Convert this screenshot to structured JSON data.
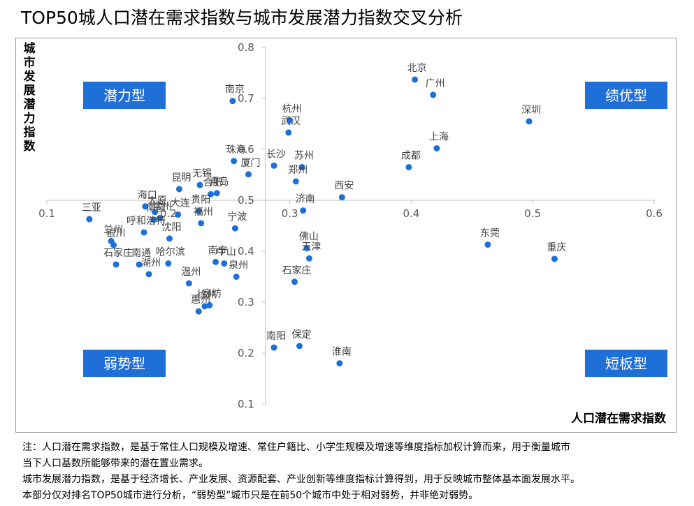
{
  "title": "TOP50城人口潜在需求指数与城市发展潜力指数交叉分析",
  "notes": [
    "注：人口潜在需求指数，是基于常住人口规模及增速、常住户籍比、小学生规模及增速等维度指标加权计算而来，用于衡量城市",
    "当下人口基数所能够带来的潜在置业需求。",
    "城市发展潜力指数，是基于经济增长、产业发展、资源配套、产业创新等维度指标计算得到，用于反映城市整体基本面发展水平。",
    "本部分仅对排名TOP50城市进行分析，“弱势型”城市只是在前50个城市中处于相对弱势，并非绝对弱势。"
  ],
  "colors": {
    "point": "#1f6fd8",
    "quadrant": "#1f6fd8",
    "quadrant_text": "#ffffff",
    "axis": "#bfbfbf",
    "border": "#9a9a9a"
  },
  "chart_data": {
    "type": "scatter",
    "title": "TOP50城人口潜在需求指数与城市发展潜力指数交叉分析",
    "xlabel": "人口潜在需求指数",
    "ylabel": "城市发展潜力指数",
    "xlim": [
      0.1,
      0.6
    ],
    "ylim": [
      0.1,
      0.8
    ],
    "axis_cross": {
      "x": 0.28,
      "y": 0.5
    },
    "xticks": [
      0.1,
      0.2,
      0.3,
      0.4,
      0.5,
      0.6
    ],
    "xtick_labels": [
      "0.1",
      "0.2",
      "0.3",
      "0.4",
      "0.5",
      "0.6"
    ],
    "yticks": [
      0.1,
      0.2,
      0.3,
      0.4,
      0.5,
      0.6,
      0.7,
      0.8
    ],
    "ytick_labels": [
      "0.1",
      "0.2",
      "0.3",
      "0.4",
      "0.5",
      "0.6",
      "0.7",
      "0.8"
    ],
    "grid": false,
    "quadrants": [
      {
        "label": "潜力型",
        "position": "top-left"
      },
      {
        "label": "绩优型",
        "position": "top-right"
      },
      {
        "label": "弱势型",
        "position": "bottom-left"
      },
      {
        "label": "短板型",
        "position": "bottom-right"
      }
    ],
    "points": [
      {
        "name": "北京",
        "x": 0.403,
        "y": 0.737
      },
      {
        "name": "广州",
        "x": 0.418,
        "y": 0.707
      },
      {
        "name": "深圳",
        "x": 0.497,
        "y": 0.655
      },
      {
        "name": "上海",
        "x": 0.421,
        "y": 0.602
      },
      {
        "name": "成都",
        "x": 0.398,
        "y": 0.565
      },
      {
        "name": "南京",
        "x": 0.253,
        "y": 0.695
      },
      {
        "name": "杭州",
        "x": 0.3,
        "y": 0.657
      },
      {
        "name": "武汉",
        "x": 0.299,
        "y": 0.633
      },
      {
        "name": "珠海",
        "x": 0.254,
        "y": 0.577
      },
      {
        "name": "厦门",
        "x": 0.266,
        "y": 0.551
      },
      {
        "name": "长沙",
        "x": 0.287,
        "y": 0.568
      },
      {
        "name": "苏州",
        "x": 0.31,
        "y": 0.565
      },
      {
        "name": "郑州",
        "x": 0.305,
        "y": 0.537
      },
      {
        "name": "西安",
        "x": 0.343,
        "y": 0.506
      },
      {
        "name": "济南",
        "x": 0.311,
        "y": 0.48
      },
      {
        "name": "昆明",
        "x": 0.209,
        "y": 0.522
      },
      {
        "name": "无锡",
        "x": 0.226,
        "y": 0.53
      },
      {
        "name": "合肥",
        "x": 0.235,
        "y": 0.512
      },
      {
        "name": "青岛",
        "x": 0.24,
        "y": 0.514
      },
      {
        "name": "贵阳",
        "x": 0.225,
        "y": 0.479
      },
      {
        "name": "海口",
        "x": 0.181,
        "y": 0.488
      },
      {
        "name": "太原",
        "x": 0.189,
        "y": 0.477
      },
      {
        "name": "常州",
        "x": 0.193,
        "y": 0.465
      },
      {
        "name": "大连",
        "x": 0.208,
        "y": 0.472
      },
      {
        "name": "福州",
        "x": 0.227,
        "y": 0.455
      },
      {
        "name": "宁波",
        "x": 0.255,
        "y": 0.445
      },
      {
        "name": "三亚",
        "x": 0.135,
        "y": 0.463
      },
      {
        "name": "南昌",
        "x": 0.188,
        "y": 0.462
      },
      {
        "name": "沈阳",
        "x": 0.201,
        "y": 0.425
      },
      {
        "name": "呼和浩特",
        "x": 0.18,
        "y": 0.437
      },
      {
        "name": "兰州",
        "x": 0.153,
        "y": 0.42
      },
      {
        "name": "银川",
        "x": 0.155,
        "y": 0.412
      },
      {
        "name": "南通",
        "x": 0.176,
        "y": 0.374
      },
      {
        "name": "湖州",
        "x": 0.184,
        "y": 0.355
      },
      {
        "name": "哈尔滨",
        "x": 0.2,
        "y": 0.376
      },
      {
        "name": "石家庄",
        "x": 0.157,
        "y": 0.374
      },
      {
        "name": "南宁",
        "x": 0.239,
        "y": 0.379
      },
      {
        "name": "中山",
        "x": 0.246,
        "y": 0.376
      },
      {
        "name": "泉州",
        "x": 0.256,
        "y": 0.35
      },
      {
        "name": "温州",
        "x": 0.217,
        "y": 0.337
      },
      {
        "name": "徐州",
        "x": 0.23,
        "y": 0.292
      },
      {
        "name": "廊坊",
        "x": 0.234,
        "y": 0.294
      },
      {
        "name": "惠州",
        "x": 0.225,
        "y": 0.282
      },
      {
        "name": "佛山",
        "x": 0.314,
        "y": 0.406
      },
      {
        "name": "天津",
        "x": 0.316,
        "y": 0.386
      },
      {
        "name": "石家庄",
        "x": 0.304,
        "y": 0.34
      },
      {
        "name": "南阳",
        "x": 0.287,
        "y": 0.211
      },
      {
        "name": "保定",
        "x": 0.308,
        "y": 0.214
      },
      {
        "name": "淮南",
        "x": 0.341,
        "y": 0.18
      },
      {
        "name": "东莞",
        "x": 0.463,
        "y": 0.413
      },
      {
        "name": "重庆",
        "x": 0.518,
        "y": 0.385
      }
    ]
  }
}
